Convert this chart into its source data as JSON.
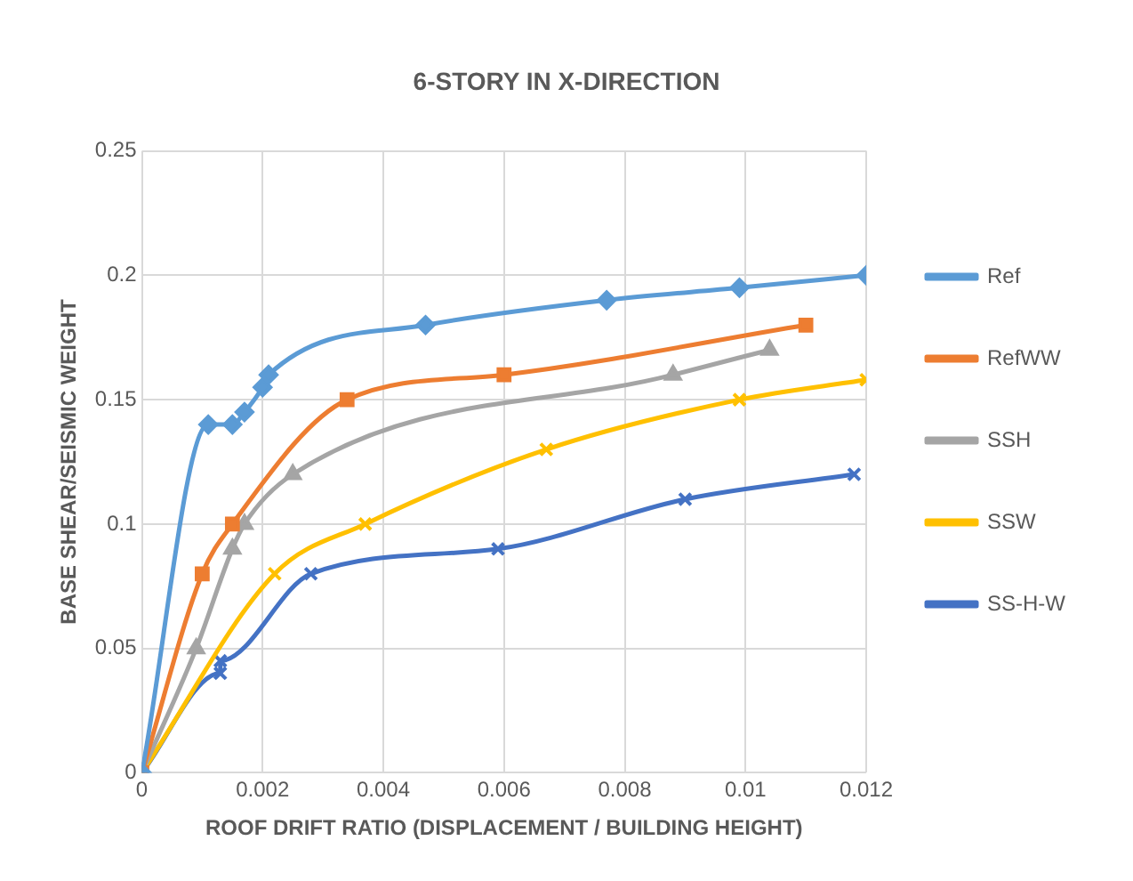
{
  "chart_data": {
    "type": "line",
    "title": "6-STORY IN X-DIRECTION",
    "xlabel": "ROOF DRIFT RATIO (DISPLACEMENT / BUILDING HEIGHT)",
    "ylabel": "BASE SHEAR/SEISMIC WEIGHT",
    "series": [
      {
        "name": "Ref",
        "color": "#5b9bd5",
        "marker": "diamond",
        "x": [
          0,
          0.0011,
          0.0015,
          0.0017,
          0.002,
          0.0021,
          0.0047,
          0.0077,
          0.0099,
          0.012
        ],
        "values": [
          0,
          0.14,
          0.14,
          0.145,
          0.155,
          0.16,
          0.18,
          0.19,
          0.195,
          0.2
        ]
      },
      {
        "name": "RefWW",
        "color": "#ed7d31",
        "marker": "square",
        "x": [
          0,
          0.001,
          0.0015,
          0.0034,
          0.006,
          0.011
        ],
        "values": [
          0,
          0.08,
          0.1,
          0.15,
          0.16,
          0.18
        ]
      },
      {
        "name": "SSH",
        "color": "#a5a5a5",
        "marker": "triangle",
        "x": [
          0,
          0.0009,
          0.0015,
          0.0017,
          0.0025,
          0.0088,
          0.0104
        ],
        "values": [
          0,
          0.05,
          0.09,
          0.1,
          0.12,
          0.16,
          0.17
        ]
      },
      {
        "name": "SSW",
        "color": "#ffc000",
        "marker": "cross",
        "x": [
          0,
          0.0022,
          0.0037,
          0.0067,
          0.0099,
          0.012
        ],
        "values": [
          0,
          0.08,
          0.1,
          0.13,
          0.15,
          0.158
        ]
      },
      {
        "name": "SS-H-W",
        "color": "#4472c4",
        "marker": "cross",
        "x": [
          0,
          0.0013,
          0.0013,
          0.0028,
          0.0059,
          0.009,
          0.0118
        ],
        "values": [
          0,
          0.04,
          0.045,
          0.08,
          0.09,
          0.11,
          0.12
        ]
      }
    ],
    "xlim": [
      0,
      0.012
    ],
    "xticks": [
      0,
      0.002,
      0.004,
      0.006,
      0.008,
      0.01,
      0.012
    ],
    "ylim": [
      0,
      0.25
    ],
    "yticks": [
      0,
      0.05,
      0.1,
      0.15,
      0.2,
      0.25
    ],
    "grid": true,
    "legend": "right"
  }
}
